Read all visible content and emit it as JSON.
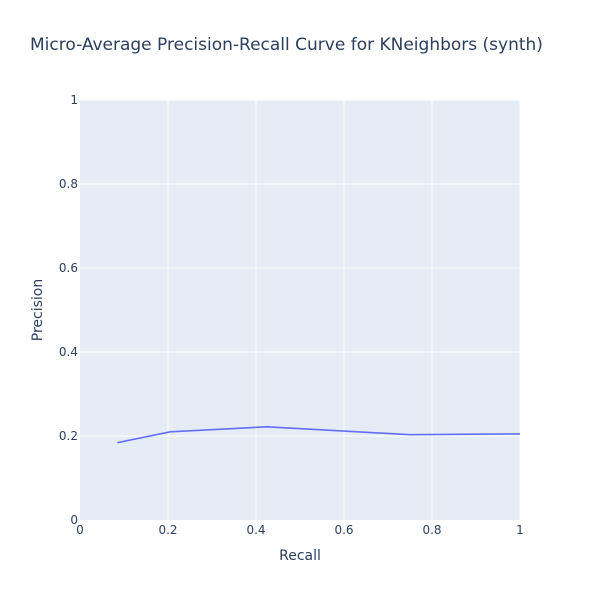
{
  "chart_data": {
    "type": "line",
    "title": "Micro-Average Precision-Recall Curve for KNeighbors (synth)",
    "xlabel": "Recall",
    "ylabel": "Precision",
    "xlim": [
      0,
      1
    ],
    "ylim": [
      0,
      1
    ],
    "xticks": [
      0,
      0.2,
      0.4,
      0.6,
      0.8,
      1
    ],
    "xtick_labels": [
      "0",
      "0.2",
      "0.4",
      "0.6",
      "0.8",
      "1"
    ],
    "yticks": [
      0,
      0.2,
      0.4,
      0.6,
      0.8,
      1
    ],
    "ytick_labels": [
      "0",
      "0.2",
      "0.4",
      "0.6",
      "0.8",
      "1"
    ],
    "grid": true,
    "series": [
      {
        "x": [
          0.085,
          0.205,
          0.425,
          0.75,
          1.0
        ],
        "y": [
          0.184,
          0.21,
          0.222,
          0.203,
          0.205
        ]
      }
    ],
    "colors": {
      "plot_background": "#e5ecf6",
      "grid": "#ffffff",
      "line": "#636efa",
      "text": "#2a3f5f"
    }
  }
}
